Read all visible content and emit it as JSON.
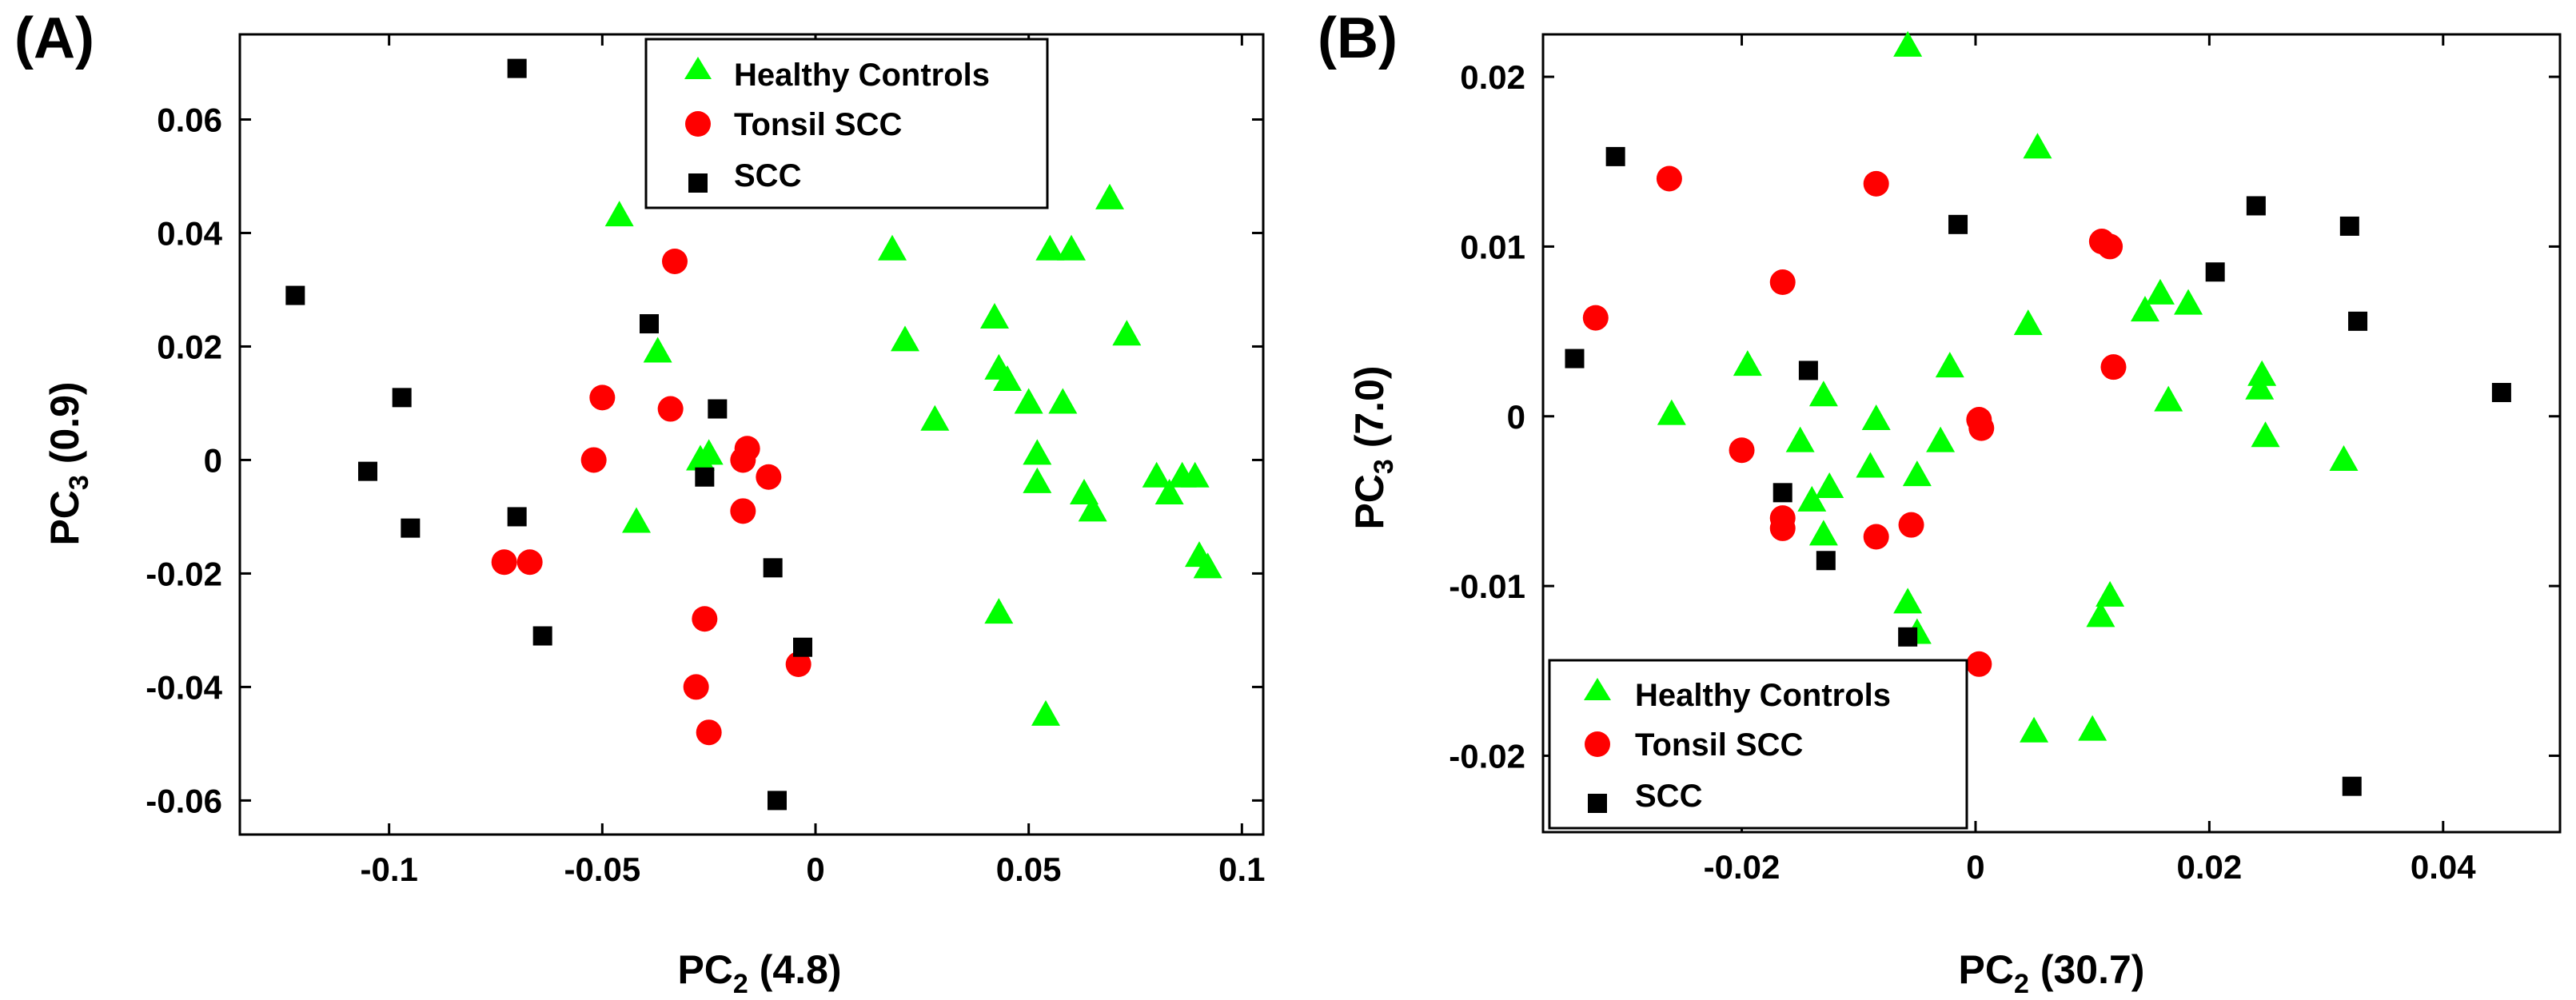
{
  "chart_data": [
    {
      "type": "scatter",
      "panel_label": "(A)",
      "xlabel": {
        "main": "PC",
        "sub": "2",
        "rest": " (4.8)"
      },
      "ylabel": {
        "main": "PC",
        "sub": "3",
        "rest": " (0.9)"
      },
      "xlim": [
        -0.135,
        0.105
      ],
      "ylim": [
        -0.066,
        0.075
      ],
      "xticks": [
        -0.1,
        -0.05,
        0,
        0.05,
        0.1
      ],
      "xtick_labels": [
        "-0.1",
        "-0.05",
        "0",
        "0.05",
        "0.1"
      ],
      "yticks": [
        -0.06,
        -0.04,
        -0.02,
        0,
        0.02,
        0.04,
        0.06
      ],
      "ytick_labels": [
        "-0.06",
        "-0.04",
        "-0.02",
        "0",
        "0.02",
        "0.04",
        "0.06"
      ],
      "legend_position": "top-center",
      "series": [
        {
          "name": "Healthy Controls",
          "marker": "triangle",
          "color": "#00ff00",
          "points": [
            [
              -0.046,
              0.043
            ],
            [
              -0.037,
              0.019
            ],
            [
              -0.042,
              -0.011
            ],
            [
              -0.027,
              0.0
            ],
            [
              -0.025,
              0.001
            ],
            [
              0.018,
              0.037
            ],
            [
              0.021,
              0.021
            ],
            [
              0.028,
              0.007
            ],
            [
              0.042,
              0.025
            ],
            [
              0.043,
              0.016
            ],
            [
              0.045,
              0.014
            ],
            [
              0.043,
              -0.027
            ],
            [
              0.05,
              0.01
            ],
            [
              0.052,
              0.001
            ],
            [
              0.052,
              -0.004
            ],
            [
              0.055,
              0.037
            ],
            [
              0.06,
              0.037
            ],
            [
              0.058,
              0.01
            ],
            [
              0.054,
              -0.045
            ],
            [
              0.063,
              -0.006
            ],
            [
              0.065,
              -0.009
            ],
            [
              0.069,
              0.046
            ],
            [
              0.073,
              0.022
            ],
            [
              0.08,
              -0.003
            ],
            [
              0.083,
              -0.006
            ],
            [
              0.086,
              -0.003
            ],
            [
              0.089,
              -0.003
            ],
            [
              0.09,
              -0.017
            ],
            [
              0.092,
              -0.019
            ]
          ]
        },
        {
          "name": "Tonsil SCC",
          "marker": "circle",
          "color": "#ff0000",
          "points": [
            [
              -0.073,
              -0.018
            ],
            [
              -0.067,
              -0.018
            ],
            [
              -0.052,
              0.0
            ],
            [
              -0.05,
              0.011
            ],
            [
              -0.033,
              0.035
            ],
            [
              -0.034,
              0.009
            ],
            [
              -0.026,
              -0.028
            ],
            [
              -0.025,
              -0.048
            ],
            [
              -0.028,
              -0.04
            ],
            [
              -0.017,
              0.0
            ],
            [
              -0.016,
              0.002
            ],
            [
              -0.011,
              -0.003
            ],
            [
              -0.017,
              -0.009
            ],
            [
              -0.004,
              -0.036
            ]
          ]
        },
        {
          "name": "SCC",
          "marker": "square",
          "color": "#000000",
          "points": [
            [
              -0.122,
              0.029
            ],
            [
              -0.105,
              -0.002
            ],
            [
              -0.097,
              0.011
            ],
            [
              -0.095,
              -0.012
            ],
            [
              -0.07,
              0.069
            ],
            [
              -0.07,
              -0.01
            ],
            [
              -0.064,
              -0.031
            ],
            [
              -0.039,
              0.024
            ],
            [
              -0.026,
              -0.003
            ],
            [
              -0.023,
              0.009
            ],
            [
              -0.01,
              -0.019
            ],
            [
              -0.003,
              -0.033
            ],
            [
              -0.009,
              -0.06
            ]
          ]
        }
      ]
    },
    {
      "type": "scatter",
      "panel_label": "(B)",
      "xlabel": {
        "main": "PC",
        "sub": "2",
        "rest": " (30.7)"
      },
      "ylabel": {
        "main": "PC",
        "sub": "3",
        "rest": " (7.0)"
      },
      "xlim": [
        -0.037,
        0.05
      ],
      "ylim": [
        -0.0245,
        0.0225
      ],
      "xticks": [
        -0.02,
        0,
        0.02,
        0.04
      ],
      "xtick_labels": [
        "-0.02",
        "0",
        "0.02",
        "0.04"
      ],
      "yticks": [
        -0.02,
        -0.01,
        0,
        0.01,
        0.02
      ],
      "ytick_labels": [
        "-0.02",
        "-0.01",
        "0",
        "0.01",
        "0.02"
      ],
      "legend_position": "bottom-left",
      "series": [
        {
          "name": "Healthy Controls",
          "marker": "triangle",
          "color": "#00ff00",
          "points": [
            [
              -0.0058,
              0.0218
            ],
            [
              0.0053,
              0.0158
            ],
            [
              -0.026,
              0.0001
            ],
            [
              -0.0195,
              0.003
            ],
            [
              -0.015,
              -0.0015
            ],
            [
              -0.013,
              0.0012
            ],
            [
              -0.014,
              -0.005
            ],
            [
              -0.0125,
              -0.0042
            ],
            [
              -0.013,
              -0.007
            ],
            [
              -0.0085,
              -0.0002
            ],
            [
              -0.009,
              -0.003
            ],
            [
              -0.005,
              -0.0035
            ],
            [
              -0.003,
              -0.0015
            ],
            [
              -0.0022,
              0.0029
            ],
            [
              -0.0058,
              -0.011
            ],
            [
              -0.005,
              -0.0128
            ],
            [
              0.0045,
              0.0054
            ],
            [
              0.0145,
              0.0062
            ],
            [
              0.0158,
              0.0072
            ],
            [
              0.0165,
              0.0009
            ],
            [
              0.0182,
              0.0066
            ],
            [
              0.0243,
              0.0016
            ],
            [
              0.0245,
              0.0024
            ],
            [
              0.0248,
              -0.0012
            ],
            [
              0.0315,
              -0.0026
            ],
            [
              0.0107,
              -0.0118
            ],
            [
              0.0115,
              -0.0106
            ],
            [
              0.01,
              -0.0185
            ],
            [
              0.005,
              -0.0186
            ]
          ]
        },
        {
          "name": "Tonsil SCC",
          "marker": "circle",
          "color": "#ff0000",
          "points": [
            [
              -0.0325,
              0.0058
            ],
            [
              -0.0262,
              0.014
            ],
            [
              -0.0165,
              0.0079
            ],
            [
              -0.02,
              -0.002
            ],
            [
              -0.0165,
              -0.006
            ],
            [
              -0.0165,
              -0.0066
            ],
            [
              -0.0085,
              0.0137
            ],
            [
              -0.0085,
              -0.0071
            ],
            [
              -0.0055,
              -0.0064
            ],
            [
              0.0003,
              -0.0002
            ],
            [
              0.0005,
              -0.0007
            ],
            [
              0.0108,
              0.0103
            ],
            [
              0.0115,
              0.01
            ],
            [
              0.0118,
              0.0029
            ],
            [
              0.0003,
              -0.0146
            ]
          ]
        },
        {
          "name": "SCC",
          "marker": "square",
          "color": "#000000",
          "points": [
            [
              -0.0343,
              0.0034
            ],
            [
              -0.0308,
              0.0153
            ],
            [
              -0.0143,
              0.0027
            ],
            [
              -0.0165,
              -0.0045
            ],
            [
              -0.0128,
              -0.0085
            ],
            [
              -0.0058,
              -0.013
            ],
            [
              -0.0015,
              0.0113
            ],
            [
              0.0205,
              0.0085
            ],
            [
              0.024,
              0.0124
            ],
            [
              0.032,
              0.0112
            ],
            [
              0.0327,
              0.0056
            ],
            [
              0.045,
              0.0014
            ],
            [
              0.0322,
              -0.0218
            ]
          ]
        }
      ]
    }
  ]
}
